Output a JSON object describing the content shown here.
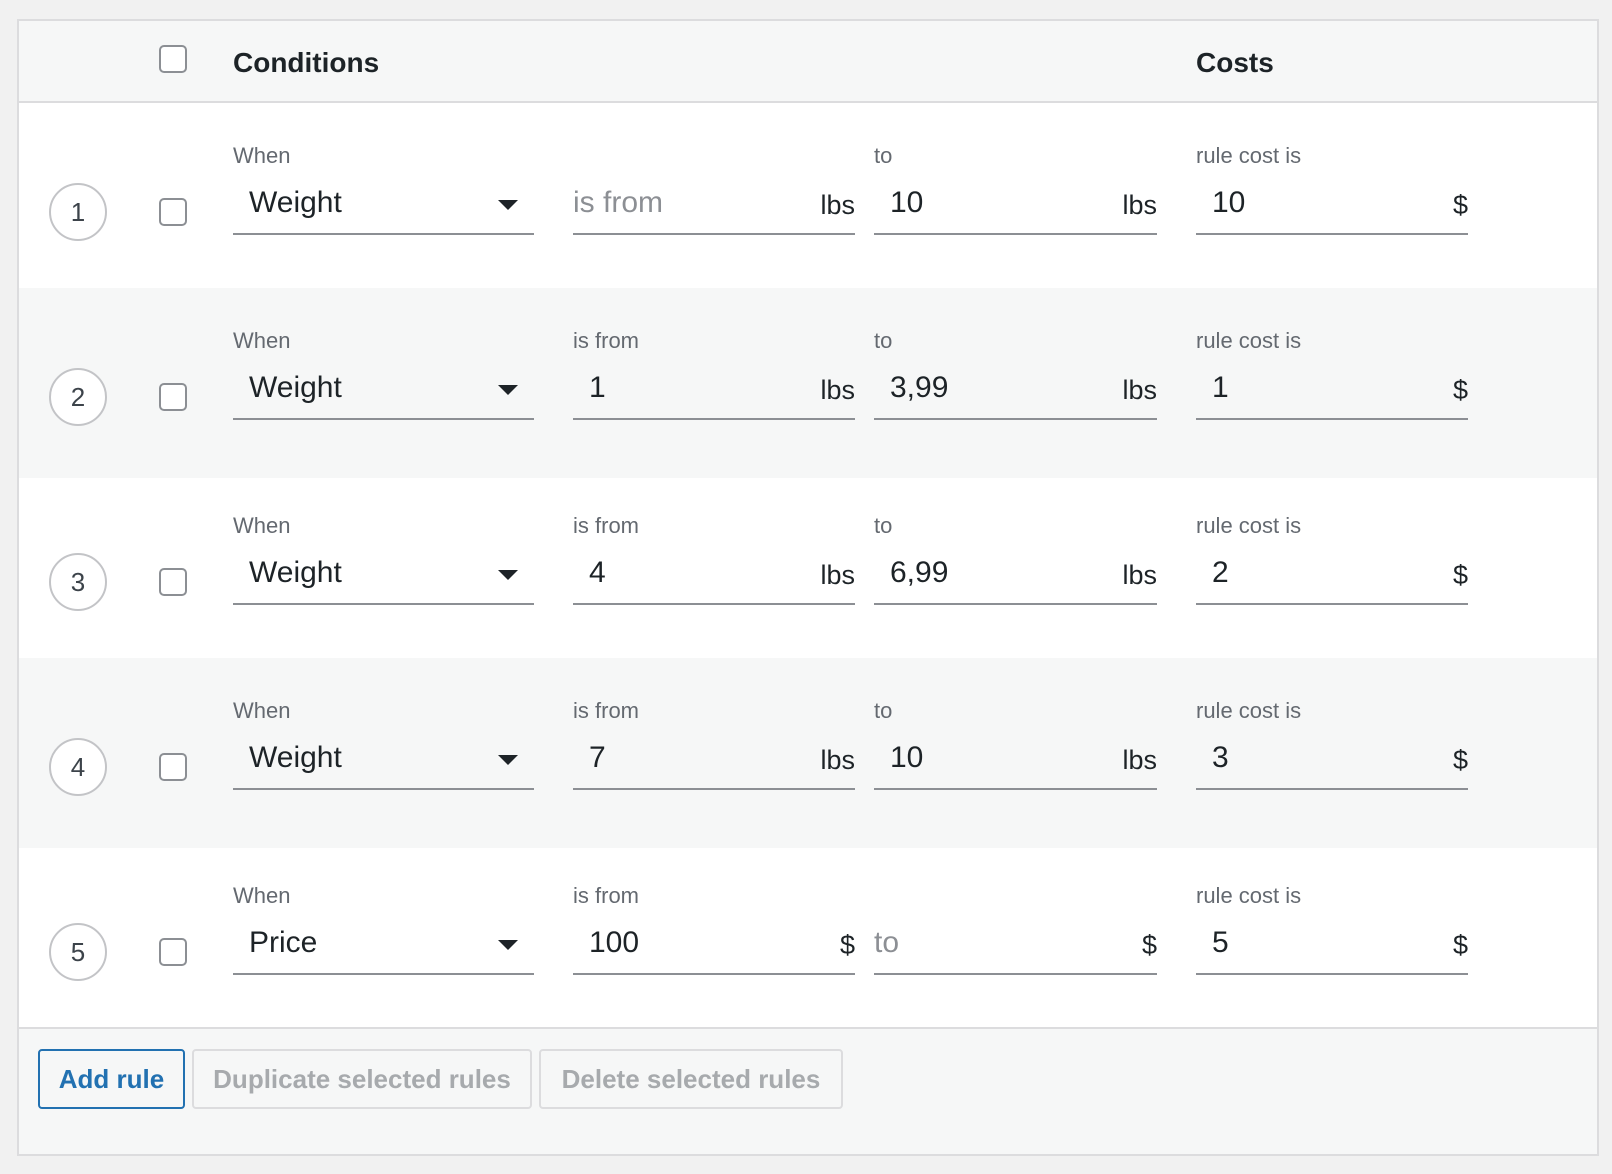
{
  "header": {
    "conditions_label": "Conditions",
    "costs_label": "Costs"
  },
  "rules": [
    {
      "number": "1",
      "when_label": "When",
      "condition": "Weight",
      "from_label": "",
      "from_value": "",
      "from_placeholder": "is from",
      "from_unit": "lbs",
      "to_label": "to",
      "to_value": "10",
      "to_placeholder": "",
      "to_unit": "lbs",
      "cost_label": "rule cost is",
      "cost_value": "10",
      "cost_unit": "$"
    },
    {
      "number": "2",
      "when_label": "When",
      "condition": "Weight",
      "from_label": "is from",
      "from_value": "1",
      "from_placeholder": "",
      "from_unit": "lbs",
      "to_label": "to",
      "to_value": "3,99",
      "to_placeholder": "",
      "to_unit": "lbs",
      "cost_label": "rule cost is",
      "cost_value": "1",
      "cost_unit": "$"
    },
    {
      "number": "3",
      "when_label": "When",
      "condition": "Weight",
      "from_label": "is from",
      "from_value": "4",
      "from_placeholder": "",
      "from_unit": "lbs",
      "to_label": "to",
      "to_value": "6,99",
      "to_placeholder": "",
      "to_unit": "lbs",
      "cost_label": "rule cost is",
      "cost_value": "2",
      "cost_unit": "$"
    },
    {
      "number": "4",
      "when_label": "When",
      "condition": "Weight",
      "from_label": "is from",
      "from_value": "7",
      "from_placeholder": "",
      "from_unit": "lbs",
      "to_label": "to",
      "to_value": "10",
      "to_placeholder": "",
      "to_unit": "lbs",
      "cost_label": "rule cost is",
      "cost_value": "3",
      "cost_unit": "$"
    },
    {
      "number": "5",
      "when_label": "When",
      "condition": "Price",
      "from_label": "is from",
      "from_value": "100",
      "from_placeholder": "",
      "from_unit": "$",
      "to_label": "",
      "to_value": "",
      "to_placeholder": "to",
      "to_unit": "$",
      "cost_label": "rule cost is",
      "cost_value": "5",
      "cost_unit": "$"
    }
  ],
  "footer": {
    "add_rule": "Add rule",
    "duplicate_selected": "Duplicate selected rules",
    "delete_selected": "Delete selected rules"
  },
  "colors": {
    "accent": "#2271b1",
    "row_alt": "#f6f7f7",
    "border": "#dcdcde",
    "disabled_text": "#a7aaad"
  }
}
